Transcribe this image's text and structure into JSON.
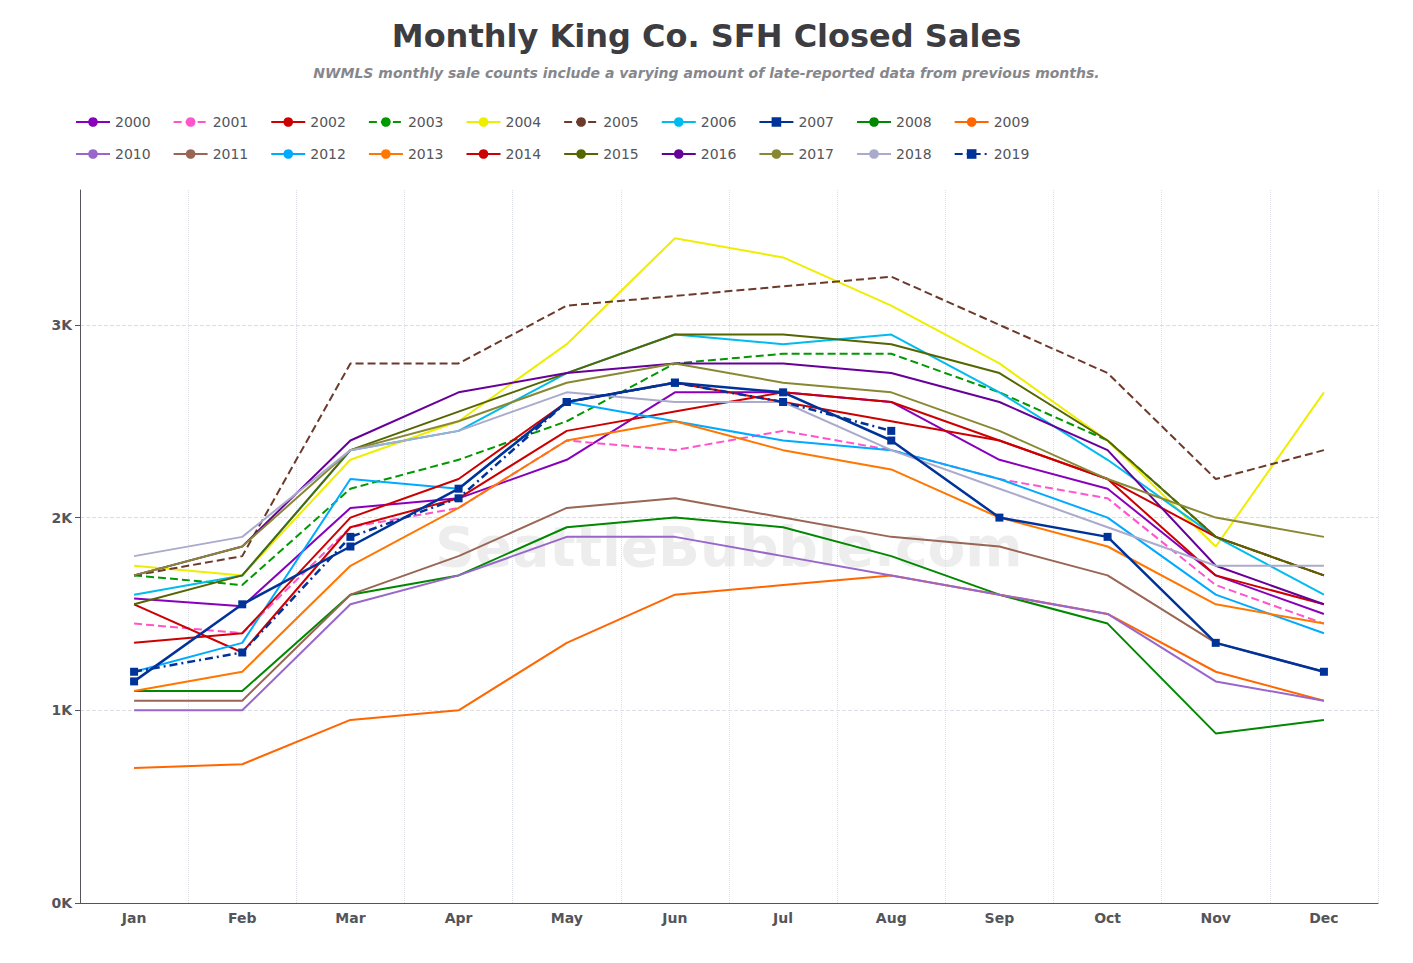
{
  "chart_data": {
    "type": "line",
    "title": "Monthly King Co. SFH Closed Sales",
    "subtitle": "NWMLS monthly sale counts include a varying amount of late-reported data from previous months.",
    "annotations": [
      "SeattleBubble.com"
    ],
    "categories": [
      "Jan",
      "Feb",
      "Mar",
      "Apr",
      "May",
      "Jun",
      "Jul",
      "Aug",
      "Sep",
      "Oct",
      "Nov",
      "Dec"
    ],
    "series": [
      {
        "name": "2000",
        "color": "#8800bb",
        "line_style": "solid",
        "values": [
          1580,
          1540,
          2050,
          2100,
          2300,
          2650,
          2650,
          2600,
          2300,
          2150,
          1700,
          1500
        ]
      },
      {
        "name": "2001",
        "color": "#ff55cc",
        "line_style": "dashed",
        "values": [
          1450,
          1400,
          1950,
          2050,
          2400,
          2350,
          2450,
          2350,
          2200,
          2100,
          1650,
          1450
        ]
      },
      {
        "name": "2002",
        "color": "#cc0000",
        "line_style": "solid",
        "values": [
          1550,
          1300,
          1950,
          2100,
          2450,
          2550,
          2650,
          2600,
          2400,
          2200,
          1700,
          1550
        ]
      },
      {
        "name": "2003",
        "color": "#009900",
        "line_style": "dashed",
        "values": [
          1700,
          1650,
          2150,
          2300,
          2500,
          2800,
          2850,
          2850,
          2650,
          2400,
          1900,
          1700
        ]
      },
      {
        "name": "2004",
        "color": "#eeee00",
        "line_style": "solid",
        "values": [
          1750,
          1700,
          2300,
          2500,
          2900,
          3450,
          3350,
          3100,
          2800,
          2400,
          1850,
          2650
        ]
      },
      {
        "name": "2005",
        "color": "#6b3a2a",
        "line_style": "dashed",
        "values": [
          1700,
          1800,
          2800,
          2800,
          3100,
          3150,
          3200,
          3250,
          3000,
          2750,
          2200,
          2350
        ]
      },
      {
        "name": "2006",
        "color": "#00bbee",
        "line_style": "solid",
        "values": [
          1600,
          1700,
          2350,
          2450,
          2750,
          2950,
          2900,
          2950,
          2650,
          2300,
          1900,
          1600
        ]
      },
      {
        "name": "2007",
        "color": "#003399",
        "line_style": "solid",
        "marker": "square",
        "values": [
          1150,
          1550,
          1850,
          2150,
          2600,
          2700,
          2650,
          2400,
          2000,
          1900,
          1350,
          1200
        ]
      },
      {
        "name": "2008",
        "color": "#008800",
        "line_style": "solid",
        "values": [
          1100,
          1100,
          1600,
          1700,
          1950,
          2000,
          1950,
          1800,
          1600,
          1450,
          880,
          950
        ]
      },
      {
        "name": "2009",
        "color": "#ff6600",
        "line_style": "solid",
        "values": [
          700,
          720,
          950,
          1000,
          1350,
          1600,
          1650,
          1700,
          1600,
          1500,
          1200,
          1050
        ]
      },
      {
        "name": "2010",
        "color": "#9966cc",
        "line_style": "solid",
        "values": [
          1000,
          1000,
          1550,
          1700,
          1900,
          1900,
          1800,
          1700,
          1600,
          1500,
          1150,
          1050
        ]
      },
      {
        "name": "2011",
        "color": "#996655",
        "line_style": "solid",
        "values": [
          1050,
          1050,
          1600,
          1800,
          2050,
          2100,
          2000,
          1900,
          1850,
          1700,
          1350,
          1200
        ]
      },
      {
        "name": "2012",
        "color": "#00aaff",
        "line_style": "solid",
        "values": [
          1200,
          1350,
          2200,
          2150,
          2600,
          2500,
          2400,
          2350,
          2200,
          2000,
          1600,
          1400
        ]
      },
      {
        "name": "2013",
        "color": "#ff7700",
        "line_style": "solid",
        "values": [
          1100,
          1200,
          1750,
          2050,
          2400,
          2500,
          2350,
          2250,
          2000,
          1850,
          1550,
          1450
        ]
      },
      {
        "name": "2014",
        "color": "#cc0000",
        "line_style": "solid",
        "values": [
          1350,
          1400,
          2000,
          2200,
          2600,
          2700,
          2600,
          2500,
          2400,
          2200,
          1900,
          1700
        ]
      },
      {
        "name": "2015",
        "color": "#556600",
        "line_style": "solid",
        "values": [
          1550,
          1700,
          2350,
          2550,
          2750,
          2950,
          2950,
          2900,
          2750,
          2400,
          1900,
          1700
        ]
      },
      {
        "name": "2016",
        "color": "#660099",
        "line_style": "solid",
        "values": [
          1700,
          1850,
          2400,
          2650,
          2750,
          2800,
          2800,
          2750,
          2600,
          2350,
          1750,
          1550
        ]
      },
      {
        "name": "2017",
        "color": "#888833",
        "line_style": "solid",
        "values": [
          1700,
          1850,
          2350,
          2500,
          2700,
          2800,
          2700,
          2650,
          2450,
          2200,
          2000,
          1900
        ]
      },
      {
        "name": "2018",
        "color": "#aaaacc",
        "line_style": "solid",
        "values": [
          1800,
          1900,
          2350,
          2450,
          2650,
          2600,
          2600,
          2350,
          2150,
          1950,
          1750,
          1750
        ]
      },
      {
        "name": "2019",
        "color": "#003399",
        "line_style": "dashdot",
        "marker": "square",
        "values": [
          1200,
          1300,
          1900,
          2100,
          2600,
          2700,
          2600,
          2450,
          null,
          null,
          null,
          null
        ]
      }
    ],
    "ylim": [
      0,
      3700
    ],
    "yticks": [
      {
        "value": 0,
        "label": "0K"
      },
      {
        "value": 1000,
        "label": "1K"
      },
      {
        "value": 2000,
        "label": "2K"
      },
      {
        "value": 3000,
        "label": "3K"
      }
    ],
    "grid": true,
    "legend": "top"
  }
}
